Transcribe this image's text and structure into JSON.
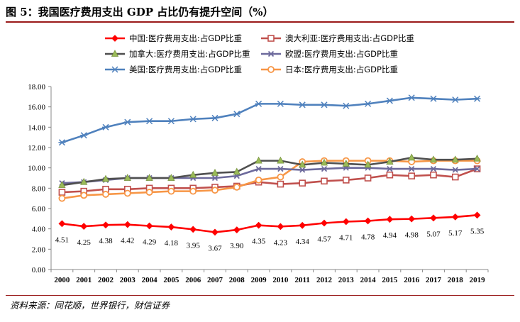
{
  "title": "图 5：我国医疗费用支出 GDP 占比仍有提升空间（%）",
  "source": "资料来源：同花顺，世界银行，财信证券",
  "chart_data": {
    "type": "line",
    "x": [
      "2000",
      "2001",
      "2002",
      "2003",
      "2004",
      "2005",
      "2006",
      "2007",
      "2008",
      "2009",
      "2010",
      "2011",
      "2012",
      "2013",
      "2014",
      "2015",
      "2016",
      "2017",
      "2018",
      "2019"
    ],
    "ylim": [
      0,
      18
    ],
    "yticks": [
      "0.00",
      "2.00",
      "4.00",
      "6.00",
      "8.00",
      "10.00",
      "12.00",
      "14.00",
      "16.00",
      "18.00"
    ],
    "grid": false,
    "legend_position": "top",
    "series": [
      {
        "name": "中国:医疗费用支出:占GDP比重",
        "color": "#ff0000",
        "marker": "diamond",
        "values": [
          4.51,
          4.25,
          4.38,
          4.42,
          4.29,
          4.18,
          3.95,
          3.67,
          3.9,
          4.35,
          4.23,
          4.34,
          4.57,
          4.71,
          4.78,
          4.94,
          4.98,
          5.07,
          5.17,
          5.35
        ],
        "labels": [
          "4.51",
          "4.25",
          "4.38",
          "4.42",
          "4.29",
          "4.18",
          "3.95",
          "3.67",
          "3.90",
          "4.35",
          "4.23",
          "4.34",
          "4.57",
          "4.71",
          "4.78",
          "4.94",
          "4.98",
          "5.07",
          "5.17",
          "5.35"
        ]
      },
      {
        "name": "澳大利亚:医疗费用支出:占GDP比重",
        "color": "#c0504d",
        "marker": "square",
        "values": [
          7.6,
          7.7,
          7.9,
          7.9,
          8.0,
          8.0,
          8.0,
          8.1,
          8.2,
          8.6,
          8.4,
          8.5,
          8.7,
          8.8,
          9.0,
          9.3,
          9.2,
          9.3,
          9.1,
          9.9
        ]
      },
      {
        "name": "加拿大:医疗费用支出:占GDP比重",
        "color": "#4f4f4f",
        "marker": "triangle",
        "values": [
          8.3,
          8.6,
          8.9,
          9.0,
          9.0,
          9.0,
          9.3,
          9.5,
          9.6,
          10.7,
          10.7,
          10.3,
          10.5,
          10.4,
          10.3,
          10.6,
          11.0,
          10.8,
          10.8,
          10.9
        ]
      },
      {
        "name": "欧盟:医疗费用支出:占GDP比重",
        "color": "#6d6a9c",
        "marker": "x",
        "values": [
          8.5,
          8.6,
          8.8,
          9.0,
          9.0,
          9.0,
          9.0,
          9.0,
          9.2,
          9.9,
          9.9,
          9.8,
          9.9,
          10.0,
          10.0,
          9.9,
          9.9,
          9.9,
          9.8,
          9.9
        ]
      },
      {
        "name": "美国:医疗费用支出:占GDP比重",
        "color": "#4f81bd",
        "marker": "asterisk",
        "values": [
          12.5,
          13.2,
          14.0,
          14.5,
          14.6,
          14.6,
          14.8,
          14.9,
          15.3,
          16.3,
          16.3,
          16.2,
          16.2,
          16.1,
          16.3,
          16.6,
          16.9,
          16.8,
          16.7,
          16.8
        ]
      },
      {
        "name": "日本:医疗费用支出:占GDP比重",
        "color": "#f79646",
        "marker": "circle",
        "values": [
          7.0,
          7.3,
          7.4,
          7.5,
          7.6,
          7.7,
          7.7,
          7.8,
          8.1,
          8.8,
          9.1,
          10.6,
          10.7,
          10.7,
          10.7,
          10.7,
          10.6,
          10.7,
          10.7,
          10.7
        ]
      }
    ]
  }
}
